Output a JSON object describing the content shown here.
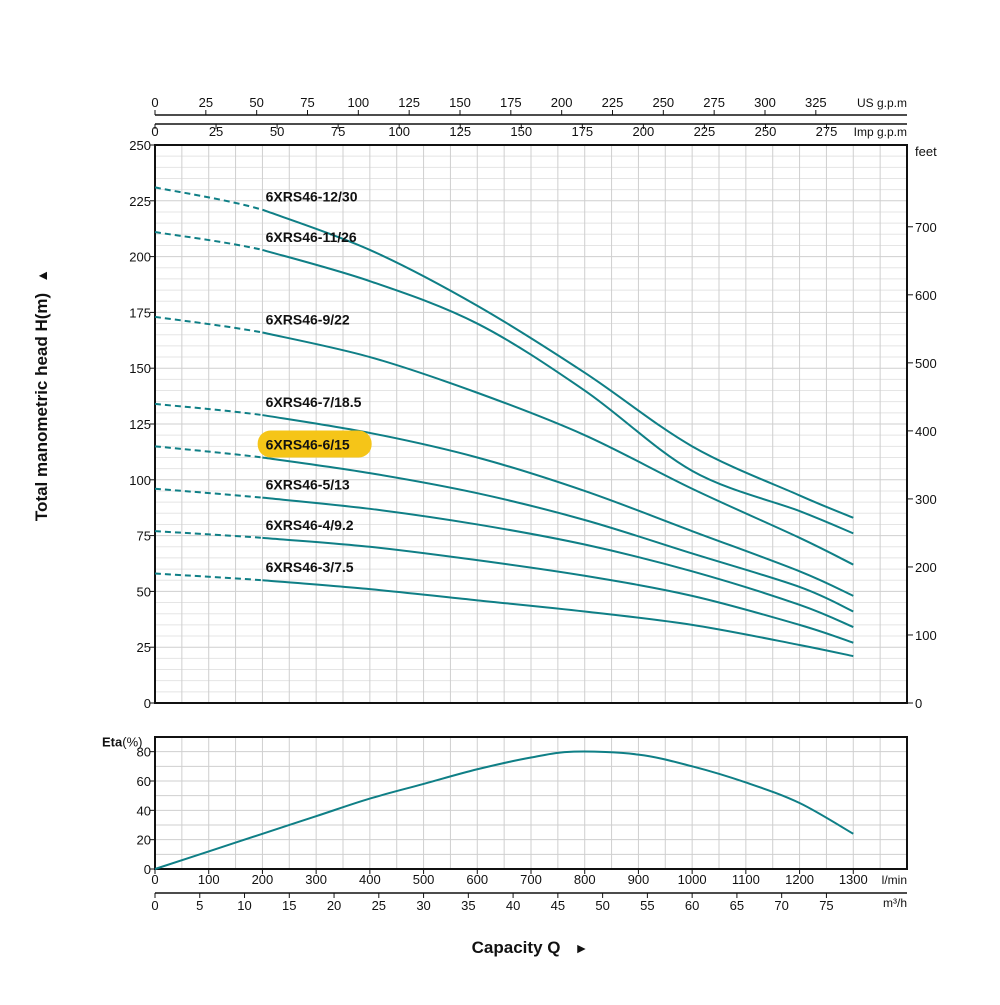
{
  "chart_data": [
    {
      "type": "line",
      "ylabel": "Total manometric head H(m)",
      "y_arrow": "▲",
      "ylim": [
        0,
        250
      ],
      "yticks": [
        0,
        25,
        50,
        75,
        100,
        125,
        150,
        175,
        200,
        225,
        250
      ],
      "y2_label": "feet",
      "y2ticks": [
        0,
        100,
        200,
        300,
        400,
        500,
        600,
        700
      ],
      "x_us_unit": "US g.p.m",
      "x_us_ticks": [
        0,
        25,
        50,
        75,
        100,
        125,
        150,
        175,
        200,
        225,
        250,
        275,
        300,
        325
      ],
      "x_imp_unit": "Imp g.p.m",
      "x_imp_ticks": [
        0,
        25,
        50,
        75,
        100,
        125,
        150,
        175,
        200,
        225,
        250,
        275
      ],
      "xlim": [
        0,
        1400
      ],
      "grid": true,
      "highlight": "6XRS46-6/15",
      "highlight_color": "#f5c518",
      "line_color": "#0f7f86",
      "x": [
        0,
        200,
        400,
        600,
        800,
        1000,
        1200,
        1300
      ],
      "series": [
        {
          "name": "6XRS46-12/30",
          "values": [
            231,
            221,
            203,
            178,
            148,
            115,
            93,
            83
          ]
        },
        {
          "name": "6XRS46-11/26",
          "values": [
            211,
            203,
            189,
            170,
            140,
            104,
            86,
            76
          ]
        },
        {
          "name": "6XRS46-9/22",
          "values": [
            173,
            166,
            155,
            139,
            120,
            96,
            74,
            62
          ]
        },
        {
          "name": "6XRS46-7/18.5",
          "values": [
            134,
            129,
            121,
            110,
            95,
            77,
            59,
            48
          ]
        },
        {
          "name": "6XRS46-6/15",
          "values": [
            115,
            110,
            103,
            94,
            82,
            67,
            52,
            41
          ]
        },
        {
          "name": "6XRS46-5/13",
          "values": [
            96,
            92,
            87,
            80,
            71,
            59,
            44,
            34
          ]
        },
        {
          "name": "6XRS46-4/9.2",
          "values": [
            77,
            74,
            70,
            64,
            57,
            48,
            35,
            27
          ]
        },
        {
          "name": "6XRS46-3/7.5",
          "values": [
            58,
            55,
            51,
            46,
            41,
            35,
            26,
            21
          ]
        }
      ]
    },
    {
      "type": "line",
      "ylabel": "Eta",
      "ylabel_unit": "(%)",
      "ylim": [
        0,
        90
      ],
      "yticks": [
        0,
        20,
        40,
        60,
        80
      ],
      "xlabel": "Capacity Q",
      "x_arrow": "►",
      "xlim": [
        0,
        1400
      ],
      "x_lmin_unit": "l/min",
      "x_lmin_ticks": [
        0,
        100,
        200,
        300,
        400,
        500,
        600,
        700,
        800,
        900,
        1000,
        1100,
        1200,
        1300
      ],
      "x_m3h_unit": "m³/h",
      "x_m3h_ticks": [
        0,
        5,
        10,
        15,
        20,
        25,
        30,
        35,
        40,
        45,
        50,
        55,
        60,
        65,
        70,
        75
      ],
      "grid": true,
      "x": [
        0,
        100,
        200,
        300,
        400,
        500,
        600,
        700,
        780,
        900,
        1000,
        1100,
        1200,
        1300
      ],
      "series": [
        {
          "values": [
            0,
            12,
            24,
            36,
            48,
            58,
            68,
            76,
            80,
            78,
            70,
            59,
            45,
            24
          ]
        }
      ]
    }
  ]
}
